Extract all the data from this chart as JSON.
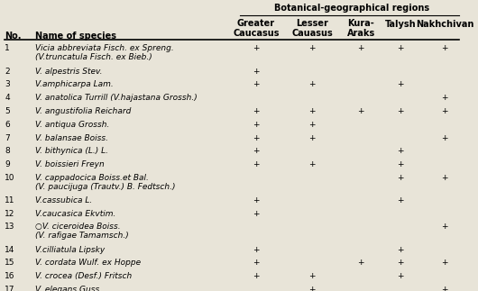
{
  "title": "Botanical-geographical regions",
  "bg_color": "#e8e4d8",
  "col_x": {
    "no": 0.01,
    "name": 0.075,
    "gc": 0.525,
    "lc": 0.645,
    "ka": 0.755,
    "ta": 0.845,
    "na": 0.925
  },
  "rows": [
    {
      "no": "1",
      "name": [
        "Vicia abbreviata Fisch. ex Spreng.",
        "(V.truncatula Fisch. ex Bieb.)"
      ],
      "gc": "+",
      "lc": "+",
      "ka": "+",
      "ta": "+",
      "na": "+"
    },
    {
      "no": "2",
      "name": [
        "V. alpestris Stev."
      ],
      "gc": "+",
      "lc": "",
      "ka": "",
      "ta": "",
      "na": ""
    },
    {
      "no": "3",
      "name": [
        "V.amphicarpa Lam."
      ],
      "gc": "+",
      "lc": "+",
      "ka": "",
      "ta": "+",
      "na": ""
    },
    {
      "no": "4",
      "name": [
        "V. anatolica Turrill (V.hajastana Grossh.)"
      ],
      "gc": "",
      "lc": "",
      "ka": "",
      "ta": "",
      "na": "+"
    },
    {
      "no": "5",
      "name": [
        "V. angustifolia Reichard"
      ],
      "gc": "+",
      "lc": "+",
      "ka": "+",
      "ta": "+",
      "na": "+"
    },
    {
      "no": "6",
      "name": [
        "V. antiqua Grossh."
      ],
      "gc": "+",
      "lc": "+",
      "ka": "",
      "ta": "",
      "na": ""
    },
    {
      "no": "7",
      "name": [
        "V. balansae Boiss."
      ],
      "gc": "+",
      "lc": "+",
      "ka": "",
      "ta": "",
      "na": "+"
    },
    {
      "no": "8",
      "name": [
        "V. bithynica (L.) L."
      ],
      "gc": "+",
      "lc": "",
      "ka": "",
      "ta": "+",
      "na": ""
    },
    {
      "no": "9",
      "name": [
        "V. boissieri Freyn"
      ],
      "gc": "+",
      "lc": "+",
      "ka": "",
      "ta": "+",
      "na": ""
    },
    {
      "no": "10",
      "name": [
        "V. cappadocica Boiss.et Bal.",
        "(V. paucijuga (Trautv.) B. Fedtsch.)"
      ],
      "gc": "",
      "lc": "",
      "ka": "",
      "ta": "+",
      "na": "+"
    },
    {
      "no": "11",
      "name": [
        "V.cassubica L."
      ],
      "gc": "+",
      "lc": "",
      "ka": "",
      "ta": "+",
      "na": ""
    },
    {
      "no": "12",
      "name": [
        "V.caucasica Ekvtim."
      ],
      "gc": "+",
      "lc": "",
      "ka": "",
      "ta": "",
      "na": ""
    },
    {
      "no": "13",
      "name": [
        "○V. ciceroidea Boiss.",
        "(V. rafigae Tamamsch.)"
      ],
      "gc": "",
      "lc": "",
      "ka": "",
      "ta": "",
      "na": "+"
    },
    {
      "no": "14",
      "name": [
        "V.cilliatula Lipsky"
      ],
      "gc": "+",
      "lc": "",
      "ka": "",
      "ta": "+",
      "na": ""
    },
    {
      "no": "15",
      "name": [
        "V. cordata Wulf. ex Hoppe"
      ],
      "gc": "+",
      "lc": "",
      "ka": "+",
      "ta": "+",
      "na": "+"
    },
    {
      "no": "16",
      "name": [
        "V. crocea (Desf.) Fritsch"
      ],
      "gc": "+",
      "lc": "+",
      "ka": "",
      "ta": "+",
      "na": ""
    },
    {
      "no": "17",
      "name": [
        "V. elegans Guss."
      ],
      "gc": "",
      "lc": "+",
      "ka": "",
      "ta": "",
      "na": "+"
    }
  ]
}
